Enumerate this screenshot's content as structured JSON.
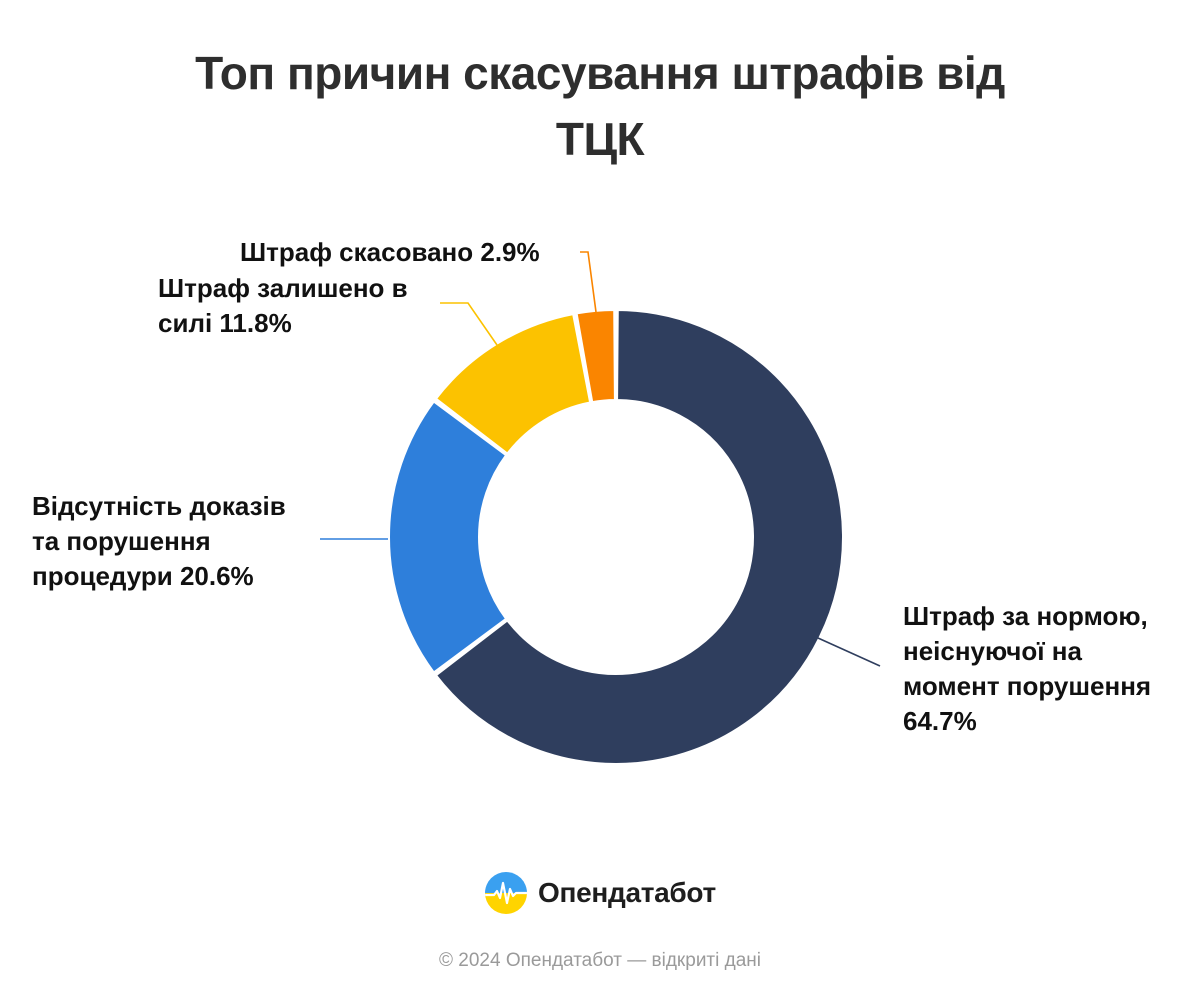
{
  "chart_data": {
    "type": "pie",
    "title": "Топ причин скасування штрафів від ТЦК",
    "slices": [
      {
        "label_lines": [
          "Штраф за нормою,",
          "неіснуючої на",
          "момент порушення",
          "64.7%"
        ],
        "value": 64.7,
        "color": "#2f3e5e"
      },
      {
        "label_lines": [
          "Відсутність доказів",
          "та порушення",
          "процедури 20.6%"
        ],
        "value": 20.6,
        "color": "#2e7fdb"
      },
      {
        "label_lines": [
          "Штраф залишено в",
          "силі 11.8%"
        ],
        "value": 11.8,
        "color": "#fcc200"
      },
      {
        "label_lines": [
          "Штраф скасовано 2.9%"
        ],
        "value": 2.9,
        "color": "#fa8500"
      }
    ],
    "legend": "none",
    "grid": false
  },
  "brand": {
    "name": "Опендатабот",
    "colors": {
      "blue": "#3aa0f0",
      "yellow": "#ffd400"
    }
  },
  "footer": "© 2024 Опендатабот — відкриті дані"
}
